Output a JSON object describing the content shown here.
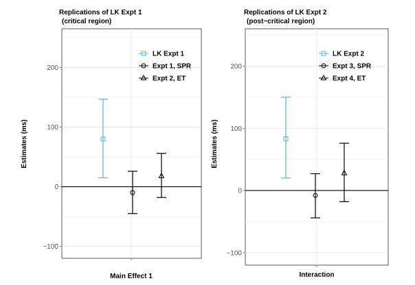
{
  "chart_data": [
    {
      "type": "errorbar",
      "title": "Replications of LK Expt 1",
      "subtitle": "(critical region)",
      "xlabel": "Main Effect 1",
      "ylabel": "Estimates (ms)",
      "ylim": [
        -120,
        265
      ],
      "yticks": [
        -100,
        0,
        100,
        200
      ],
      "yticklabels": [
        "−100",
        "0",
        "100",
        "200"
      ],
      "reference_line": 0,
      "grid": true,
      "legend_position": "top-right",
      "series": [
        {
          "name": "LK Expt 1",
          "marker": "square",
          "color": "#56b4e9",
          "estimate": 80,
          "lower": 15,
          "upper": 147
        },
        {
          "name": "Expt 1, SPR",
          "marker": "circle",
          "color": "#000000",
          "estimate": -10,
          "lower": -45,
          "upper": 26
        },
        {
          "name": "Expt 2, ET",
          "marker": "triangle",
          "color": "#000000",
          "estimate": 18,
          "lower": -18,
          "upper": 56
        }
      ]
    },
    {
      "type": "errorbar",
      "title": "Replications of LK Expt 2",
      "subtitle": "(post−critical region)",
      "xlabel": "Interaction",
      "ylabel": "Estimates (ms)",
      "ylim": [
        -120,
        260
      ],
      "yticks": [
        -100,
        0,
        100,
        200
      ],
      "yticklabels": [
        "−100",
        "0",
        "100",
        "200"
      ],
      "reference_line": 0,
      "grid": true,
      "legend_position": "top-right",
      "series": [
        {
          "name": "LK Expt 2",
          "marker": "square",
          "color": "#56b4e9",
          "estimate": 83,
          "lower": 20,
          "upper": 150
        },
        {
          "name": "Expt 3, SPR",
          "marker": "circle",
          "color": "#000000",
          "estimate": -8,
          "lower": -44,
          "upper": 27
        },
        {
          "name": "Expt 4, ET",
          "marker": "triangle",
          "color": "#000000",
          "estimate": 28,
          "lower": -18,
          "upper": 76
        }
      ]
    }
  ]
}
